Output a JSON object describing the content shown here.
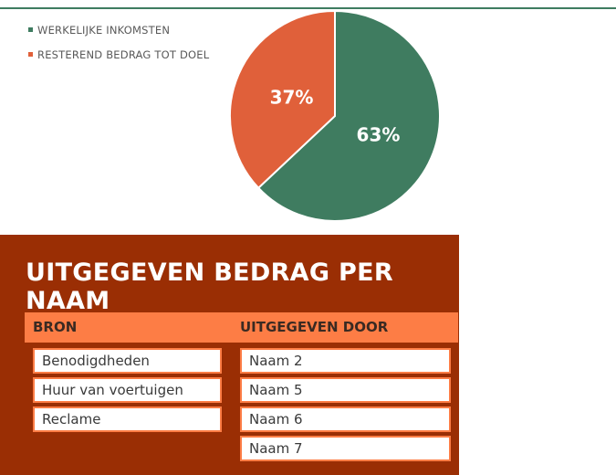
{
  "legend": [
    {
      "label": "WERKELIJKE INKOMSTEN",
      "color": "#3f7c60"
    },
    {
      "label": "RESTEREND BEDRAG TOT DOEL",
      "color": "#e0603a"
    }
  ],
  "chart_data": {
    "type": "pie",
    "categories": [
      "WERKELIJKE INKOMSTEN",
      "RESTEREND BEDRAG TOT DOEL"
    ],
    "values": [
      63,
      37
    ],
    "labels": [
      "63%",
      "37%"
    ],
    "colors": [
      "#3f7c60",
      "#e0603a"
    ],
    "legend_position": "top-left"
  },
  "panel": {
    "title": "UITGEGEVEN BEDRAG PER NAAM",
    "headers": [
      "BRON",
      "UITGEGEVEN DOOR"
    ],
    "bron": [
      "Benodigdheden",
      "Huur van voertuigen",
      "Reclame"
    ],
    "door": [
      "Naam 2",
      "Naam 5",
      "Naam 6",
      "Naam 7"
    ]
  }
}
